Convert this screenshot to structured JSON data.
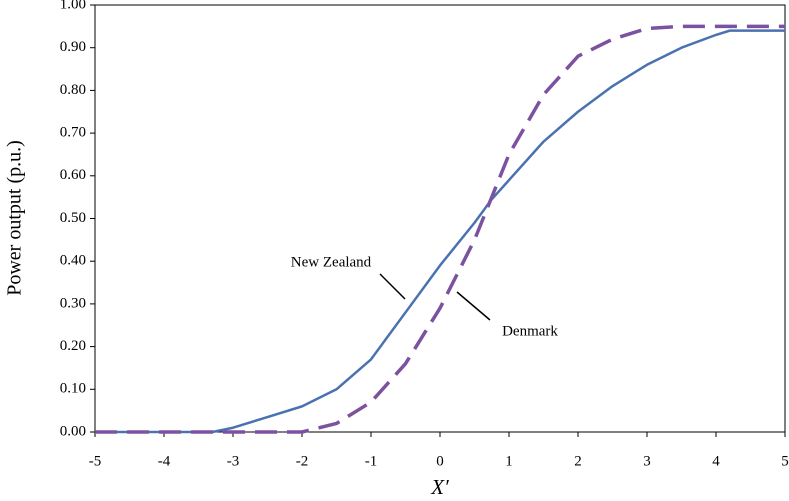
{
  "chart_data": {
    "type": "line",
    "xlabel": "X′",
    "ylabel": "Power output (p.u.)",
    "x": [
      -5,
      -4,
      -3.3,
      -3,
      -2.5,
      -2,
      -1.5,
      -1,
      -0.5,
      0,
      0.5,
      0.75,
      1,
      1.5,
      2,
      2.5,
      3,
      3.5,
      4,
      4.2,
      5
    ],
    "series": [
      {
        "name": "New Zealand",
        "color": "#4a72b0",
        "dashed": false,
        "values": [
          0,
          0,
          0,
          0.01,
          0.035,
          0.06,
          0.1,
          0.17,
          0.28,
          0.39,
          0.49,
          0.545,
          0.59,
          0.68,
          0.75,
          0.81,
          0.86,
          0.9,
          0.93,
          0.94,
          0.94
        ]
      },
      {
        "name": "Denmark",
        "color": "#7b52a0",
        "dashed": true,
        "values": [
          0,
          0,
          0,
          0,
          0,
          0,
          0.02,
          0.07,
          0.16,
          0.29,
          0.45,
          0.55,
          0.65,
          0.79,
          0.88,
          0.92,
          0.945,
          0.95,
          0.95,
          0.95,
          0.95
        ]
      }
    ],
    "xlim": [
      -5,
      5
    ],
    "xticks": [
      -5,
      -4,
      -3,
      -2,
      -1,
      0,
      1,
      2,
      3,
      4,
      5
    ],
    "ylim": [
      0,
      1
    ],
    "yticks": [
      {
        "value": 0,
        "label": "0.00"
      },
      {
        "value": 0.1,
        "label": "0.10"
      },
      {
        "value": 0.2,
        "label": "0.20"
      },
      {
        "value": 0.3,
        "label": "0.30"
      },
      {
        "value": 0.4,
        "label": "0.40"
      },
      {
        "value": 0.5,
        "label": "0.50"
      },
      {
        "value": 0.6,
        "label": "0.60"
      },
      {
        "value": 0.7,
        "label": "0.70"
      },
      {
        "value": 0.8,
        "label": "0.80"
      },
      {
        "value": 0.9,
        "label": "0.90"
      },
      {
        "value": 1,
        "label": "1.00"
      }
    ],
    "grid": false,
    "annotations": [
      {
        "text": "New Zealand"
      },
      {
        "text": "Denmark"
      }
    ]
  }
}
